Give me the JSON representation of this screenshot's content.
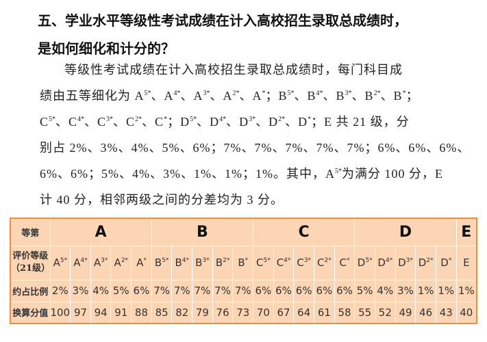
{
  "heading": {
    "lines": [
      "五、学业水平等级性考试成绩在计入高校招生录取总成绩时，",
      "是如何细化和计分的？"
    ]
  },
  "paragraph": {
    "lines": [
      [
        "等级性考试成绩在计入高校招生录取总成绩时，每门科目成"
      ],
      [
        "绩由五等细化为 A",
        {
          "sup": "5*"
        },
        "、A",
        {
          "sup": "4*"
        },
        "、A",
        {
          "sup": "3*"
        },
        "、A",
        {
          "sup": "2*"
        },
        "、A",
        {
          "sup": "*"
        },
        "；B",
        {
          "sup": "5*"
        },
        "、B",
        {
          "sup": "4*"
        },
        "、B",
        {
          "sup": "3*"
        },
        "、B",
        {
          "sup": "2*"
        },
        "、B",
        {
          "sup": "*"
        },
        "；"
      ],
      [
        "C",
        {
          "sup": "5*"
        },
        "、C",
        {
          "sup": "4*"
        },
        "、C",
        {
          "sup": "3*"
        },
        "、C",
        {
          "sup": "2*"
        },
        "、C",
        {
          "sup": "*"
        },
        "；D",
        {
          "sup": "5*"
        },
        "、D",
        {
          "sup": "4*"
        },
        "、D",
        {
          "sup": "3*"
        },
        "、D",
        {
          "sup": "2*"
        },
        "、D",
        {
          "sup": "*"
        },
        "；E 共 21 级，分"
      ],
      [
        "别占 2%、3%、4%、5%、6%；7%、7%、7%、7%、7%；6%、6%、6%、"
      ],
      [
        "6%、6%；5%、4%、3%、1%、1%；1%。其中，A",
        {
          "sup": "5*"
        },
        "为满分 100 分，E"
      ],
      [
        "计 40 分，相邻两级之间的分差均为 3 分。"
      ]
    ]
  },
  "table": {
    "row_labels": [
      "等第",
      [
        "评价等级",
        "（21级）"
      ],
      "约占比例",
      "换算分值"
    ],
    "groups": [
      {
        "label": "A",
        "grades": [
          {
            "base": "A",
            "sup": "5*"
          },
          {
            "base": "A",
            "sup": "4*"
          },
          {
            "base": "A",
            "sup": "3*"
          },
          {
            "base": "A",
            "sup": "2*"
          },
          {
            "base": "A",
            "sup": "*"
          }
        ],
        "percents": [
          "2%",
          "3%",
          "4%",
          "5%",
          "6%"
        ],
        "scores": [
          100,
          97,
          94,
          91,
          88
        ]
      },
      {
        "label": "B",
        "grades": [
          {
            "base": "B",
            "sup": "5*"
          },
          {
            "base": "B",
            "sup": "4*"
          },
          {
            "base": "B",
            "sup": "3*"
          },
          {
            "base": "B",
            "sup": "2*"
          },
          {
            "base": "B",
            "sup": "*"
          }
        ],
        "percents": [
          "7%",
          "7%",
          "7%",
          "7%",
          "7%"
        ],
        "scores": [
          85,
          82,
          79,
          76,
          73
        ]
      },
      {
        "label": "C",
        "grades": [
          {
            "base": "C",
            "sup": "5*"
          },
          {
            "base": "C",
            "sup": "4*"
          },
          {
            "base": "C",
            "sup": "3*"
          },
          {
            "base": "C",
            "sup": "2*"
          },
          {
            "base": "C",
            "sup": "*"
          }
        ],
        "percents": [
          "6%",
          "6%",
          "6%",
          "6%",
          "6%"
        ],
        "scores": [
          70,
          67,
          64,
          61,
          58
        ]
      },
      {
        "label": "D",
        "grades": [
          {
            "base": "D",
            "sup": "5*"
          },
          {
            "base": "D",
            "sup": "4*"
          },
          {
            "base": "D",
            "sup": "3*"
          },
          {
            "base": "D",
            "sup": "2*"
          },
          {
            "base": "D",
            "sup": "*"
          }
        ],
        "percents": [
          "5%",
          "4%",
          "3%",
          "1%",
          "1%"
        ],
        "scores": [
          55,
          52,
          49,
          46,
          43
        ]
      },
      {
        "label": "E",
        "grades": [
          {
            "base": "E"
          }
        ],
        "percents": [
          "1%"
        ],
        "scores": [
          40
        ]
      }
    ]
  }
}
